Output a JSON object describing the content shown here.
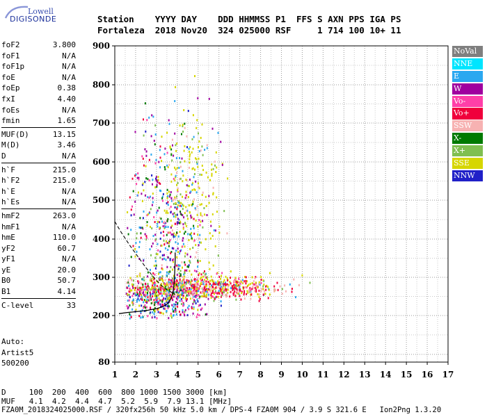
{
  "logo": {
    "line1": "Lowell",
    "line2": "DIGISONDE"
  },
  "header": {
    "row1": "Station    YYYY DAY    DDD HHMMSS P1  FFS S AXN PPS IGA PS",
    "row2": "Fortaleza  2018 Nov20  324 025000 RSF     1 714 100 10+ 11"
  },
  "params": {
    "group1": [
      {
        "label": "foF2",
        "value": "3.800"
      },
      {
        "label": "foF1",
        "value": "N/A"
      },
      {
        "label": "foF1p",
        "value": "N/A"
      },
      {
        "label": "foE",
        "value": "N/A"
      },
      {
        "label": "foEp",
        "value": "0.38"
      },
      {
        "label": "fxI",
        "value": "4.40"
      },
      {
        "label": "foEs",
        "value": "N/A"
      },
      {
        "label": "fmin",
        "value": "1.65"
      }
    ],
    "group2": [
      {
        "label": "MUF(D)",
        "value": "13.15"
      },
      {
        "label": "M(D)",
        "value": "3.46"
      },
      {
        "label": "D",
        "value": "N/A"
      }
    ],
    "group3": [
      {
        "label": "h`F",
        "value": "215.0"
      },
      {
        "label": "h`F2",
        "value": "215.0"
      },
      {
        "label": "h`E",
        "value": "N/A"
      },
      {
        "label": "h`Es",
        "value": "N/A"
      }
    ],
    "group4": [
      {
        "label": "hmF2",
        "value": "263.0"
      },
      {
        "label": "hmF1",
        "value": "N/A"
      },
      {
        "label": "hmE",
        "value": "110.0"
      },
      {
        "label": "yF2",
        "value": "60.7"
      },
      {
        "label": "yF1",
        "value": "N/A"
      },
      {
        "label": "yE",
        "value": "20.0"
      },
      {
        "label": "B0",
        "value": "50.7"
      },
      {
        "label": "B1",
        "value": "4.14"
      }
    ],
    "group5": [
      {
        "label": "C-level",
        "value": "33"
      }
    ]
  },
  "auto": {
    "line1": "Auto:",
    "line2": "Artist5",
    "line3": "500200"
  },
  "muf_table": {
    "row1": "D     100  200  400  600  800 1000 1500 3000 [km]",
    "row2": "MUF   4.1  4.2  4.4  4.7  5.2  5.9  7.9 13.1 [MHz]"
  },
  "footer": "FZA0M_2018324025000.RSF / 320fx256h 50 kHz 5.0 km / DPS-4 FZA0M 904 / 3.9 S 321.6 E   Ion2Png 1.3.20",
  "legend": [
    {
      "label": "NoVal",
      "color": "#7f7f7f"
    },
    {
      "label": "NNE",
      "color": "#00e5ff"
    },
    {
      "label": "E",
      "color": "#2ba8f0"
    },
    {
      "label": "W",
      "color": "#a0009f"
    },
    {
      "label": "Vo-",
      "color": "#ff3fa8"
    },
    {
      "label": "Vo+",
      "color": "#f0003c"
    },
    {
      "label": "SSW",
      "color": "#f7b2b2"
    },
    {
      "label": "X-",
      "color": "#007a00"
    },
    {
      "label": "X+",
      "color": "#7fbf50"
    },
    {
      "label": "SSE",
      "color": "#d6d600"
    },
    {
      "label": "NNW",
      "color": "#2020c8"
    }
  ],
  "chart_data": {
    "type": "scatter",
    "x_ticks": [
      "1",
      "2",
      "3",
      "4",
      "5",
      "6",
      "7",
      "8",
      "9",
      "10",
      "11",
      "12",
      "13",
      "14",
      "15",
      "16",
      "17"
    ],
    "y_ticks": [
      "80",
      "200",
      "300",
      "400",
      "500",
      "600",
      "700",
      "800",
      "900"
    ],
    "xlim": [
      1,
      17
    ],
    "ylim": [
      80,
      900
    ],
    "xlabel": "",
    "ylabel": "",
    "grid": true,
    "trace_profile": [
      [
        1.2,
        205
      ],
      [
        1.6,
        208
      ],
      [
        2.0,
        210
      ],
      [
        2.5,
        213
      ],
      [
        3.0,
        218
      ],
      [
        3.3,
        223
      ],
      [
        3.55,
        232
      ],
      [
        3.7,
        245
      ],
      [
        3.8,
        262
      ],
      [
        3.85,
        285
      ],
      [
        3.88,
        315
      ],
      [
        3.9,
        345
      ],
      [
        3.9,
        365
      ]
    ],
    "trace_oblique": [
      [
        1.0,
        445
      ],
      [
        1.3,
        418
      ],
      [
        1.7,
        385
      ],
      [
        2.1,
        355
      ],
      [
        2.5,
        325
      ],
      [
        2.9,
        298
      ],
      [
        3.2,
        280
      ],
      [
        3.5,
        268
      ],
      [
        3.9,
        255
      ]
    ]
  }
}
